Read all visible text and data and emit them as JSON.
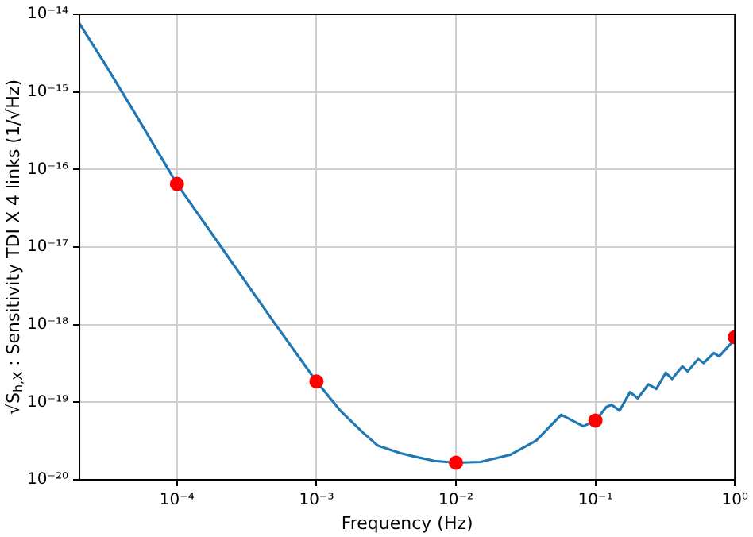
{
  "chart_data": {
    "type": "line",
    "xlabel": "Frequency (Hz)",
    "ylabel": "√S$_{h,X}$ : Sensitivity TDI X 4 links (1/√Hz)",
    "log": "xy",
    "grid": true,
    "xlim": [
      2e-05,
      1
    ],
    "xticks": [
      {
        "value": 0.0001,
        "label": "10⁻⁴"
      },
      {
        "value": 0.001,
        "label": "10⁻³"
      },
      {
        "value": 0.01,
        "label": "10⁻²"
      },
      {
        "value": 0.1,
        "label": "10⁻¹"
      },
      {
        "value": 1,
        "label": "10⁰"
      }
    ],
    "ylim": [
      1e-20,
      1e-14
    ],
    "yticks": [
      {
        "value": 1e-20,
        "label": "10⁻²⁰"
      },
      {
        "value": 1e-19,
        "label": "10⁻¹⁹"
      },
      {
        "value": 1e-18,
        "label": "10⁻¹⁸"
      },
      {
        "value": 1e-17,
        "label": "10⁻¹⁷"
      },
      {
        "value": 1e-16,
        "label": "10⁻¹⁶"
      },
      {
        "value": 1e-15,
        "label": "10⁻¹⁵"
      },
      {
        "value": 1e-14,
        "label": "10⁻¹⁴"
      }
    ],
    "series": [
      {
        "color": "#1f77b4",
        "line_style": "solid",
        "x": [
          2e-05,
          3e-05,
          5e-05,
          0.0001,
          0.0002,
          0.0005,
          0.001,
          0.0015,
          0.00214,
          0.00276,
          0.004,
          0.005,
          0.007,
          0.01,
          0.015,
          0.0245,
          0.0376,
          0.0569,
          0.0818,
          0.1,
          0.12,
          0.1306,
          0.149,
          0.177,
          0.201,
          0.24,
          0.273,
          0.319,
          0.354,
          0.42,
          0.459,
          0.545,
          0.596,
          0.706,
          0.771,
          1
        ],
        "values": [
          7.6e-15,
          2.4e-15,
          5.3e-16,
          6.5e-17,
          1.1e-17,
          1.05e-18,
          1.85e-19,
          7.6e-20,
          4.1e-20,
          2.75e-20,
          2.2e-20,
          2e-20,
          1.75e-20,
          1.66e-20,
          1.7e-20,
          2.1e-20,
          3.2e-20,
          6.9e-20,
          4.9e-20,
          5.8e-20,
          8.7e-20,
          9.3e-20,
          7.8e-20,
          1.35e-19,
          1.12e-19,
          1.7e-19,
          1.48e-19,
          2.4e-19,
          2e-19,
          2.9e-19,
          2.5e-19,
          3.6e-19,
          3.2e-19,
          4.3e-19,
          3.9e-19,
          6.5e-19
        ]
      },
      {
        "type": "scatter",
        "color": "#ff0000",
        "marker": "circle",
        "x": [
          0.0001,
          0.001,
          0.01,
          0.1,
          1
        ],
        "values": [
          6.5e-17,
          1.85e-19,
          1.66e-20,
          5.8e-20,
          6.9e-19
        ]
      }
    ]
  }
}
